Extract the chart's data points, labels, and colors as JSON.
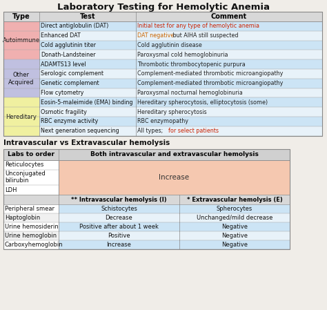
{
  "title": "Laboratory Testing for Hemolytic Anemia",
  "bg_color": "#f0ede8",
  "table1": {
    "headers": [
      "Type",
      "Test",
      "Comment"
    ],
    "rows": [
      {
        "type": "Autoimmune",
        "type_bg": "#f0b0b0",
        "test": "Direct antiglobulin (DAT)",
        "comment": "Initial test for any type of hemolytic anemia",
        "comment_color": "#cc2200",
        "row_bg": "#cce4f5"
      },
      {
        "type": "",
        "type_bg": "#f0b0b0",
        "test": "Enhanced DAT",
        "comment_parts": [
          [
            "DAT negative",
            "#cc6600"
          ],
          [
            " but AIHA still suspected",
            "#222222"
          ]
        ],
        "row_bg": "#e8f2f9"
      },
      {
        "type": "",
        "type_bg": "#f0b0b0",
        "test": "Cold agglutinin titer",
        "comment": "Cold agglutinin disease",
        "comment_color": "#222222",
        "row_bg": "#cce4f5"
      },
      {
        "type": "",
        "type_bg": "#f0b0b0",
        "test": "Donath-Landsteiner",
        "comment": "Paroxysmal cold hemoglobinuria",
        "comment_color": "#222222",
        "row_bg": "#e8f2f9"
      },
      {
        "type": "Other\nAcquired",
        "type_bg": "#c0c0e0",
        "test": "ADAMTS13 level",
        "comment": "Thrombotic thrombocytopenic purpura",
        "comment_color": "#222222",
        "row_bg": "#cce4f5"
      },
      {
        "type": "",
        "type_bg": "#c0c0e0",
        "test": "Serologic complement",
        "comment": "Complement-mediated thrombotic microangiopathy",
        "comment_color": "#222222",
        "row_bg": "#e8f2f9"
      },
      {
        "type": "",
        "type_bg": "#c0c0e0",
        "test": "Genetic complement",
        "comment": "Complement-mediated thrombotic microangiopathy",
        "comment_color": "#222222",
        "row_bg": "#cce4f5"
      },
      {
        "type": "",
        "type_bg": "#c0c0e0",
        "test": "Flow cytometry",
        "comment": "Paroxysmal nocturnal hemoglobinuria",
        "comment_color": "#222222",
        "row_bg": "#e8f2f9"
      },
      {
        "type": "Hereditary",
        "type_bg": "#f0f0a0",
        "test": "Eosin-5-maleimide (EMA) binding",
        "comment": "Hereditary spherocytosis, elliptocytosis (some)",
        "comment_color": "#222222",
        "row_bg": "#cce4f5"
      },
      {
        "type": "",
        "type_bg": "#f0f0a0",
        "test": "Osmotic fragility",
        "comment": "Hereditary spherocytosis",
        "comment_color": "#222222",
        "row_bg": "#e8f2f9"
      },
      {
        "type": "",
        "type_bg": "#f0f0a0",
        "test": "RBC enzyme activity",
        "comment": "RBC enzymopathy",
        "comment_color": "#222222",
        "row_bg": "#cce4f5"
      },
      {
        "type": "",
        "type_bg": "#f0f0a0",
        "test": "Next generation sequencing",
        "comment_parts": [
          [
            "All types; ",
            "#222222"
          ],
          [
            "for select patients",
            "#cc2200"
          ]
        ],
        "row_bg": "#e8f2f9"
      }
    ]
  },
  "subtitle2": "Intravascular vs Extravascular hemolysis",
  "table2": {
    "col1_header": "Labs to order",
    "col2_header": "Both intravascular and extravascular hemolysis",
    "salmon_bg": "#f5c8b0",
    "both_rows": [
      "Reticulocytes",
      "Unconjugated\nbilirubin",
      "LDH"
    ],
    "sub_headers": [
      "** Intravascular hemolysis (I)",
      "* Extravascular hemolysis (E)"
    ],
    "data_rows": [
      [
        "Peripheral smear",
        "Schistocytes",
        "Spherocytes",
        "#cce4f5",
        "#cce4f5"
      ],
      [
        "Haptoglobin",
        "Decrease",
        "Unchanged/mild decrease",
        "#e8f2f9",
        "#e8f2f9"
      ],
      [
        "Urine hemosiderin",
        "Positive after about 1 week",
        "Negative",
        "#cce4f5",
        "#cce4f5"
      ],
      [
        "Urine hemoglobin",
        "Positive",
        "Negative",
        "#e8f2f9",
        "#e8f2f9"
      ],
      [
        "Carboxyhemoglobin",
        "Increase",
        "Negative",
        "#cce4f5",
        "#cce4f5"
      ]
    ]
  }
}
